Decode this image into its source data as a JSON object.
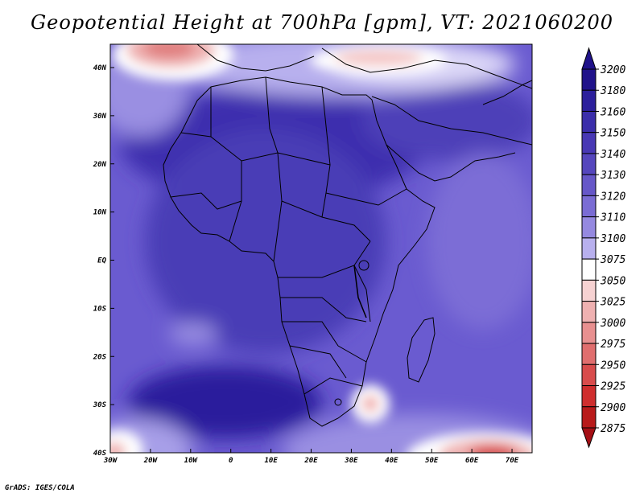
{
  "title": "Geopotential Height at 700hPa [gpm], VT: 2021060200",
  "credit": "GrADS: IGES/COLA",
  "map": {
    "lon_ticks": [
      "30W",
      "20W",
      "10W",
      "0",
      "10E",
      "20E",
      "30E",
      "40E",
      "50E",
      "60E",
      "70E"
    ],
    "lat_ticks": [
      "40N",
      "30N",
      "20N",
      "10N",
      "EQ",
      "10S",
      "20S",
      "30S",
      "40S"
    ]
  },
  "colorbar": {
    "levels": [
      "3200",
      "3180",
      "3160",
      "3150",
      "3140",
      "3130",
      "3120",
      "3110",
      "3100",
      "3075",
      "3050",
      "3025",
      "3000",
      "2975",
      "2950",
      "2925",
      "2900",
      "2875"
    ],
    "colors": [
      "#20128a",
      "#2c1f9c",
      "#3b2eaa",
      "#4838b4",
      "#5546bd",
      "#6657c8",
      "#7a6cd4",
      "#9589e0",
      "#b8b0ee",
      "#ffffff",
      "#f6d2d2",
      "#efb1b1",
      "#e89090",
      "#e06e6e",
      "#d84c4c",
      "#cf2e2e",
      "#b81a1a"
    ]
  }
}
